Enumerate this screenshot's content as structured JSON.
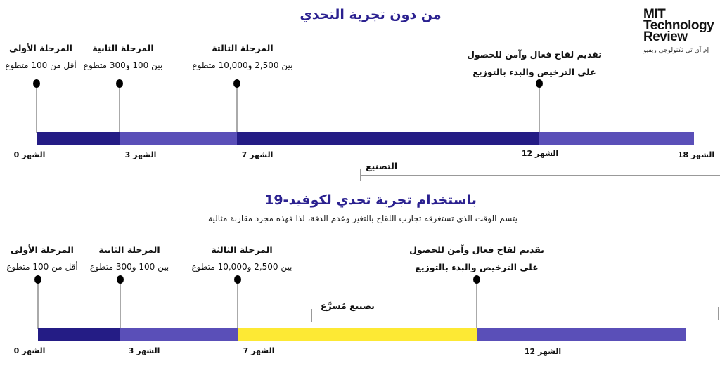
{
  "logo": {
    "line1": "MIT",
    "line2": "Technology",
    "line3": "Review",
    "arabic": "إم آي تي تكنولوجي ريفيو"
  },
  "top": {
    "title": "من دون تجربة التحدي",
    "stages": [
      {
        "title": "المرحلة الأولى",
        "desc": "أقل من 100 متطوع"
      },
      {
        "title": "المرحلة الثانية",
        "desc": "بين 100 و300 متطوع"
      },
      {
        "title": "المرحلة الثالثة",
        "desc": "بين 2,500 و10,000 متطوع"
      },
      {
        "title": "تقديم لقاح فعال وآمن للحصول",
        "desc": "على الترخيص والبدء بالتوزيع"
      }
    ],
    "months": [
      "الشهر 0",
      "الشهر 3",
      "الشهر 7",
      "الشهر 12",
      "الشهر 18"
    ],
    "manufacturing": "التصنيع"
  },
  "bottom": {
    "title": "باستخدام تجربة تحدي لكوفيد-19",
    "subtitle": "يتسم الوقت الذي تستغرقه تجارب اللقاح بالتغير وعدم الدقة، لذا فهذه مجرد مقاربة مثالية",
    "stages": [
      {
        "title": "المرحلة الأولى",
        "desc": "أقل من 100 متطوع"
      },
      {
        "title": "المرحلة الثانية",
        "desc": "بين 100 و300 متطوع"
      },
      {
        "title": "المرحلة الثالثة",
        "desc": "بين 2,500 و10,000 متطوع"
      },
      {
        "title": "تقديم لقاح فعال وآمن للحصول",
        "desc": "على الترخيص والبدء بالتوزيع"
      }
    ],
    "months": [
      "الشهر 0",
      "الشهر 3",
      "الشهر 7",
      "الشهر 12"
    ],
    "manufacturing": "تصنيع مُسرَّع"
  },
  "colors": {
    "dark": "#241c85",
    "light": "#5a4fb8",
    "yellow": "#fde934",
    "title": "#2b2190"
  }
}
